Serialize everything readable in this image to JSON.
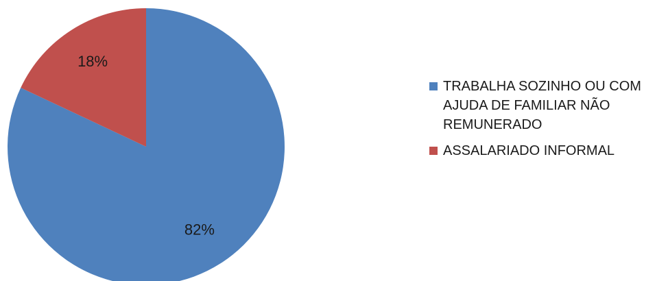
{
  "chart_data": {
    "type": "pie",
    "categories": [
      "TRABALHA SOZINHO OU COM AJUDA DE FAMILIAR NÃO REMUNERADO",
      "ASSALARIADO INFORMAL"
    ],
    "values": [
      82,
      18
    ],
    "data_labels": [
      "82%",
      "18%"
    ],
    "colors": [
      "#4F81BD",
      "#C0504D"
    ],
    "start_angle_deg": 0,
    "direction": "clockwise",
    "legend": "right",
    "title": ""
  }
}
